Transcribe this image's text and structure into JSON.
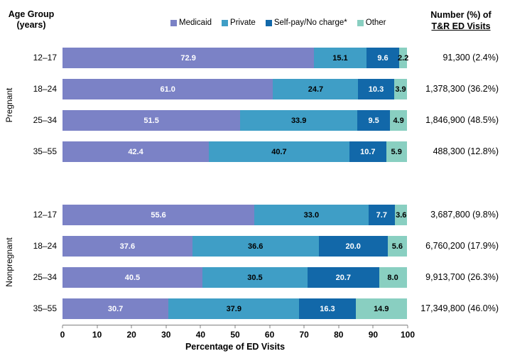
{
  "header": {
    "left_title_line1": "Age Group",
    "left_title_line2": "(years)",
    "right_title_line1": "Number (%) of",
    "right_title_line2": "T&R ED Visits"
  },
  "legend": {
    "items": [
      {
        "label": "Medicaid",
        "color": "#7b82c6"
      },
      {
        "label": "Private",
        "color": "#3f9ec6"
      },
      {
        "label": "Self-pay/No charge*",
        "color": "#1268a9"
      },
      {
        "label": "Other",
        "color": "#89cfc1"
      }
    ]
  },
  "chart_data": {
    "type": "bar",
    "orientation": "horizontal",
    "stacked": true,
    "title": "",
    "xlabel": "Percentage of ED Visits",
    "xlim": [
      0,
      100
    ],
    "xticks": [
      0,
      10,
      20,
      30,
      40,
      50,
      60,
      70,
      80,
      90,
      100
    ],
    "legend_position": "top",
    "series_names": [
      "Medicaid",
      "Private",
      "Self-pay/No charge*",
      "Other"
    ],
    "series_colors": [
      "#7b82c6",
      "#3f9ec6",
      "#1268a9",
      "#89cfc1"
    ],
    "value_label_colors": [
      "#ffffff",
      "#000000",
      "#ffffff",
      "#000000"
    ],
    "groups": [
      {
        "name": "Pregnant",
        "rows": [
          {
            "age_group": "12–17",
            "values": [
              72.9,
              15.1,
              9.6,
              2.2
            ],
            "total": "91,300 (2.4%)"
          },
          {
            "age_group": "18–24",
            "values": [
              61.0,
              24.7,
              10.3,
              3.9
            ],
            "total": "1,378,300 (36.2%)"
          },
          {
            "age_group": "25–34",
            "values": [
              51.5,
              33.9,
              9.5,
              4.9
            ],
            "total": "1,846,900 (48.5%)"
          },
          {
            "age_group": "35–55",
            "values": [
              42.4,
              40.7,
              10.7,
              5.9
            ],
            "total": "488,300 (12.8%)"
          }
        ]
      },
      {
        "name": "Nonpregnant",
        "rows": [
          {
            "age_group": "12–17",
            "values": [
              55.6,
              33.0,
              7.7,
              3.6
            ],
            "total": "3,687,800 (9.8%)"
          },
          {
            "age_group": "18–24",
            "values": [
              37.6,
              36.6,
              20.0,
              5.6
            ],
            "total": "6,760,200 (17.9%)"
          },
          {
            "age_group": "25–34",
            "values": [
              40.5,
              30.5,
              20.7,
              8.0
            ],
            "total": "9,913,700 (26.3%)"
          },
          {
            "age_group": "35–55",
            "values": [
              30.7,
              37.9,
              16.3,
              14.9
            ],
            "total": "17,349,800 (46.0%)"
          }
        ]
      }
    ]
  }
}
